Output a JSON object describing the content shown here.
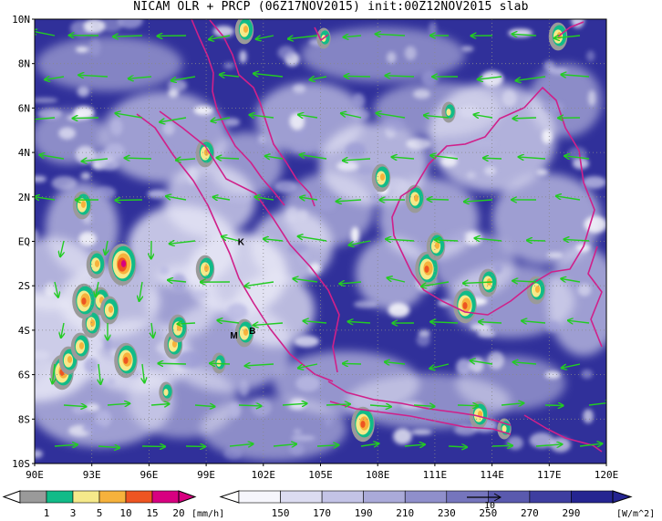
{
  "title": "NICAM OLR + PRCP (06Z17NOV2015) init:00Z12NOV2015 slab",
  "map": {
    "lat_labels": [
      "10N",
      "8N",
      "6N",
      "4N",
      "2N",
      "EQ",
      "2S",
      "4S",
      "6S",
      "8S",
      "10S"
    ],
    "lon_labels": [
      "90E",
      "93E",
      "96E",
      "99E",
      "102E",
      "105E",
      "108E",
      "111E",
      "114E",
      "117E",
      "120E"
    ],
    "lat_range": [
      -10,
      10
    ],
    "lon_range": [
      90,
      120
    ],
    "grid": "dotted",
    "wind_vectors": "green arrows (mostly easterly/westward flow)",
    "coastline_color": "#d0208a",
    "sites": [
      {
        "label": "K",
        "lon": 100.8,
        "lat": 0.0
      },
      {
        "label": "M",
        "lon": 100.4,
        "lat": -4.2
      },
      {
        "label": "B",
        "lon": 101.4,
        "lat": -4.0
      }
    ]
  },
  "precip_legend": {
    "ticks": [
      "1",
      "3",
      "5",
      "10",
      "15",
      "20"
    ],
    "unit": "[mm/h]",
    "colors": [
      "#9a9a9a",
      "#11bb88",
      "#f5e98a",
      "#f6b23c",
      "#ee5522",
      "#d80080"
    ]
  },
  "olr_legend": {
    "ticks": [
      "150",
      "170",
      "190",
      "210",
      "230",
      "250",
      "270",
      "290"
    ],
    "unit": "[W/m^2]",
    "colors": [
      "#f6f6fc",
      "#dcdcf1",
      "#c3c3e6",
      "#aaaad9",
      "#8f8fcb",
      "#7575bd",
      "#5a5aae",
      "#3e3ea0",
      "#252591"
    ],
    "vector_ref": "10"
  }
}
